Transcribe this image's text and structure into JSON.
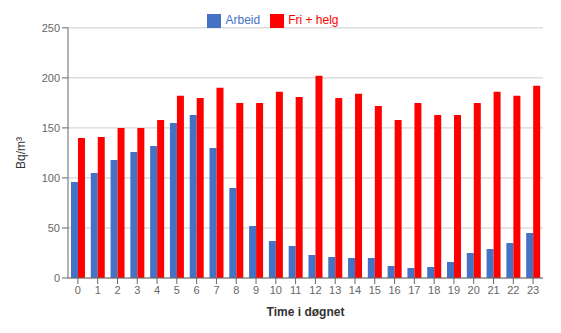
{
  "chart_data": {
    "type": "bar",
    "xlabel": "Time i døgnet",
    "ylabel": "Bq/m³",
    "categories": [
      "0",
      "1",
      "2",
      "3",
      "4",
      "5",
      "6",
      "7",
      "8",
      "9",
      "10",
      "11",
      "12",
      "13",
      "14",
      "15",
      "16",
      "17",
      "18",
      "19",
      "20",
      "21",
      "22",
      "23"
    ],
    "series": [
      {
        "name": "Arbeid",
        "color": "#4472C4",
        "values": [
          96,
          105,
          118,
          126,
          132,
          155,
          163,
          130,
          90,
          52,
          37,
          32,
          23,
          21,
          20,
          20,
          12,
          10,
          11,
          16,
          25,
          29,
          35,
          45
        ]
      },
      {
        "name": "Fri + helg",
        "color": "#FF0000",
        "values": [
          140,
          141,
          150,
          150,
          158,
          182,
          180,
          190,
          175,
          175,
          186,
          181,
          202,
          180,
          184,
          172,
          158,
          175,
          163,
          163,
          175,
          186,
          182,
          192
        ]
      }
    ],
    "ylim": [
      0,
      250
    ],
    "yticks": [
      0,
      50,
      100,
      150,
      200,
      250
    ],
    "grid": true,
    "legend": "top"
  }
}
